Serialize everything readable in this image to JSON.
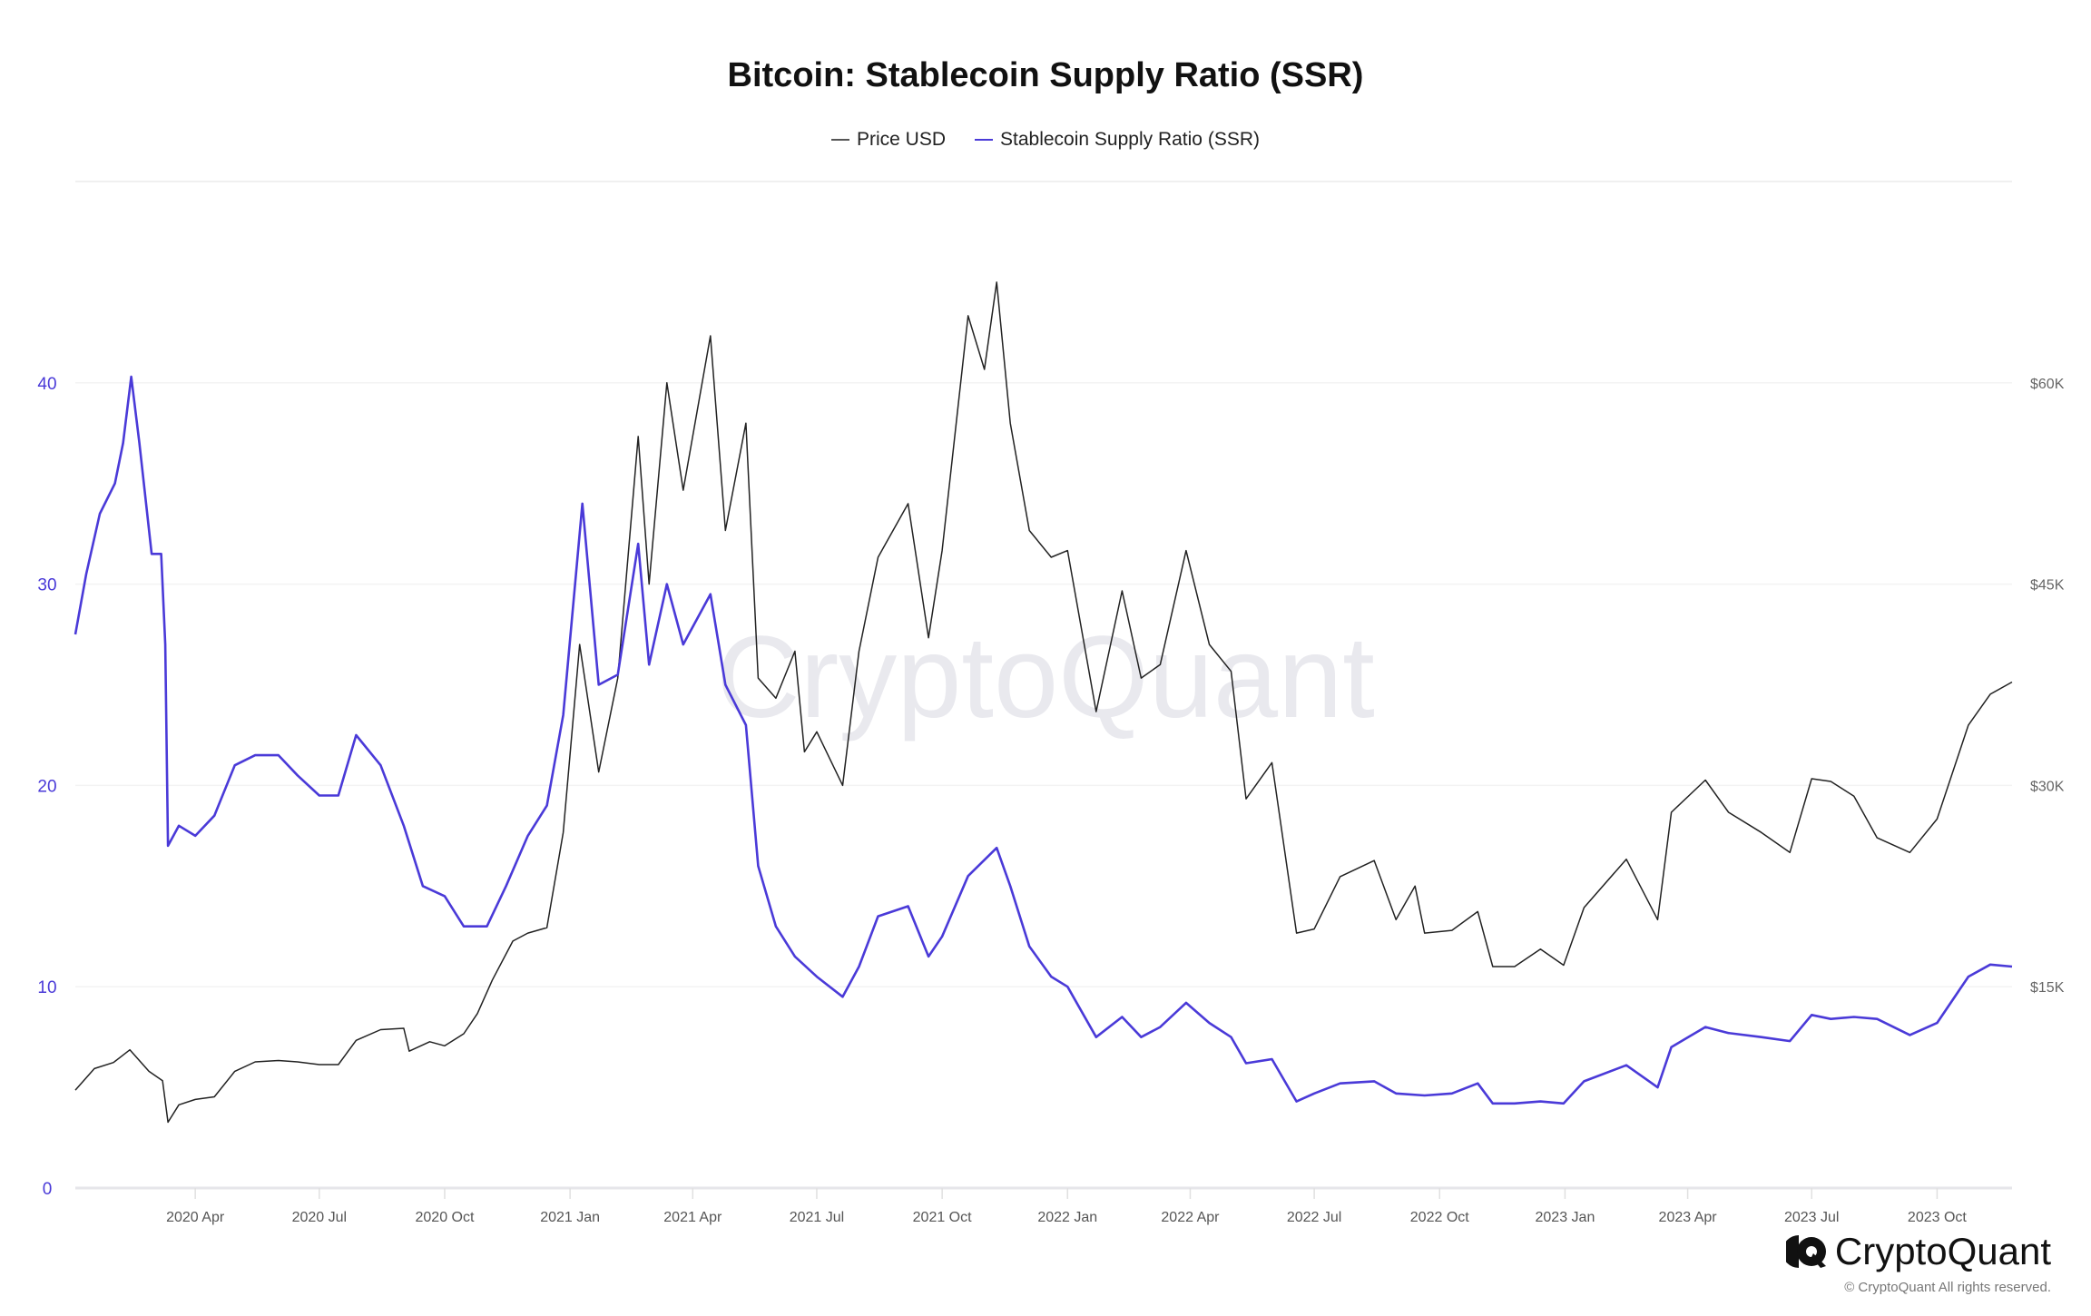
{
  "chart_data": {
    "type": "line",
    "title": "Bitcoin: Stablecoin Supply Ratio (SSR)",
    "legend_position": "top",
    "grid": true,
    "xlim": [
      "2020-01-04",
      "2023-11-25"
    ],
    "x_ticks": [
      "2020 Apr",
      "2020 Jul",
      "2020 Oct",
      "2021 Jan",
      "2021 Apr",
      "2021 Jul",
      "2021 Oct",
      "2022 Jan",
      "2022 Apr",
      "2022 Jul",
      "2022 Oct",
      "2023 Jan",
      "2023 Apr",
      "2023 Jul",
      "2023 Oct"
    ],
    "x_tick_dates": [
      "2020-04-01",
      "2020-07-01",
      "2020-10-01",
      "2021-01-01",
      "2021-04-01",
      "2021-07-01",
      "2021-10-01",
      "2022-01-01",
      "2022-04-01",
      "2022-07-01",
      "2022-10-01",
      "2023-01-01",
      "2023-04-01",
      "2023-07-01",
      "2023-10-01"
    ],
    "y_left": {
      "ylim": [
        0,
        50
      ],
      "ticks": [
        0,
        10,
        20,
        30,
        40
      ],
      "tick_labels": [
        "0",
        "10",
        "20",
        "30",
        "40"
      ],
      "color": "#4a3ad8"
    },
    "y_right": {
      "ylim": [
        0,
        75000
      ],
      "ticks": [
        15000,
        30000,
        45000,
        60000
      ],
      "tick_labels": [
        "$15K",
        "$30K",
        "$45K",
        "$60K"
      ],
      "color": "#666666"
    },
    "series": [
      {
        "name": "Price USD",
        "axis": "right",
        "color": "#222222",
        "points": [
          [
            "2020-01-04",
            7300
          ],
          [
            "2020-01-18",
            8900
          ],
          [
            "2020-02-01",
            9350
          ],
          [
            "2020-02-13",
            10300
          ],
          [
            "2020-02-27",
            8700
          ],
          [
            "2020-03-08",
            8000
          ],
          [
            "2020-03-12",
            4900
          ],
          [
            "2020-03-20",
            6200
          ],
          [
            "2020-04-01",
            6600
          ],
          [
            "2020-04-15",
            6800
          ],
          [
            "2020-04-30",
            8700
          ],
          [
            "2020-05-15",
            9400
          ],
          [
            "2020-06-01",
            9500
          ],
          [
            "2020-06-15",
            9400
          ],
          [
            "2020-07-01",
            9200
          ],
          [
            "2020-07-15",
            9200
          ],
          [
            "2020-07-28",
            11000
          ],
          [
            "2020-08-15",
            11800
          ],
          [
            "2020-09-01",
            11900
          ],
          [
            "2020-09-05",
            10200
          ],
          [
            "2020-09-20",
            10900
          ],
          [
            "2020-10-01",
            10600
          ],
          [
            "2020-10-15",
            11500
          ],
          [
            "2020-10-25",
            13000
          ],
          [
            "2020-11-05",
            15500
          ],
          [
            "2020-11-20",
            18400
          ],
          [
            "2020-12-01",
            19000
          ],
          [
            "2020-12-15",
            19400
          ],
          [
            "2020-12-27",
            26500
          ],
          [
            "2021-01-08",
            40500
          ],
          [
            "2021-01-22",
            31000
          ],
          [
            "2021-02-05",
            38000
          ],
          [
            "2021-02-20",
            56000
          ],
          [
            "2021-02-28",
            45000
          ],
          [
            "2021-03-13",
            60000
          ],
          [
            "2021-03-25",
            52000
          ],
          [
            "2021-04-14",
            63500
          ],
          [
            "2021-04-25",
            49000
          ],
          [
            "2021-05-10",
            57000
          ],
          [
            "2021-05-19",
            38000
          ],
          [
            "2021-06-01",
            36500
          ],
          [
            "2021-06-15",
            40000
          ],
          [
            "2021-06-22",
            32500
          ],
          [
            "2021-07-01",
            34000
          ],
          [
            "2021-07-20",
            30000
          ],
          [
            "2021-08-01",
            40000
          ],
          [
            "2021-08-15",
            47000
          ],
          [
            "2021-09-06",
            51000
          ],
          [
            "2021-09-21",
            41000
          ],
          [
            "2021-10-01",
            47500
          ],
          [
            "2021-10-20",
            65000
          ],
          [
            "2021-11-01",
            61000
          ],
          [
            "2021-11-10",
            67500
          ],
          [
            "2021-11-20",
            57000
          ],
          [
            "2021-12-04",
            49000
          ],
          [
            "2021-12-20",
            47000
          ],
          [
            "2022-01-01",
            47500
          ],
          [
            "2022-01-22",
            35500
          ],
          [
            "2022-02-10",
            44500
          ],
          [
            "2022-02-24",
            38000
          ],
          [
            "2022-03-10",
            39000
          ],
          [
            "2022-03-29",
            47500
          ],
          [
            "2022-04-15",
            40500
          ],
          [
            "2022-05-01",
            38500
          ],
          [
            "2022-05-12",
            29000
          ],
          [
            "2022-05-31",
            31700
          ],
          [
            "2022-06-18",
            19000
          ],
          [
            "2022-07-01",
            19300
          ],
          [
            "2022-07-20",
            23200
          ],
          [
            "2022-08-14",
            24400
          ],
          [
            "2022-08-30",
            20000
          ],
          [
            "2022-09-13",
            22500
          ],
          [
            "2022-09-20",
            19000
          ],
          [
            "2022-10-10",
            19200
          ],
          [
            "2022-10-29",
            20600
          ],
          [
            "2022-11-09",
            16500
          ],
          [
            "2022-11-25",
            16500
          ],
          [
            "2022-12-14",
            17800
          ],
          [
            "2022-12-31",
            16600
          ],
          [
            "2023-01-15",
            20900
          ],
          [
            "2023-02-15",
            24500
          ],
          [
            "2023-03-10",
            20000
          ],
          [
            "2023-03-20",
            28000
          ],
          [
            "2023-04-14",
            30400
          ],
          [
            "2023-05-01",
            28000
          ],
          [
            "2023-05-25",
            26500
          ],
          [
            "2023-06-15",
            25000
          ],
          [
            "2023-07-01",
            30500
          ],
          [
            "2023-07-15",
            30300
          ],
          [
            "2023-08-01",
            29200
          ],
          [
            "2023-08-18",
            26100
          ],
          [
            "2023-09-11",
            25000
          ],
          [
            "2023-10-01",
            27500
          ],
          [
            "2023-10-24",
            34500
          ],
          [
            "2023-11-09",
            36800
          ],
          [
            "2023-11-25",
            37700
          ]
        ]
      },
      {
        "name": "Stablecoin Supply Ratio (SSR)",
        "axis": "left",
        "color": "#4a3ad8",
        "points": [
          [
            "2020-01-04",
            27.5
          ],
          [
            "2020-01-12",
            30.5
          ],
          [
            "2020-01-22",
            33.5
          ],
          [
            "2020-02-02",
            35
          ],
          [
            "2020-02-08",
            37
          ],
          [
            "2020-02-14",
            40.3
          ],
          [
            "2020-02-20",
            37
          ],
          [
            "2020-02-29",
            31.5
          ],
          [
            "2020-03-07",
            31.5
          ],
          [
            "2020-03-10",
            27
          ],
          [
            "2020-03-12",
            17
          ],
          [
            "2020-03-20",
            18
          ],
          [
            "2020-04-01",
            17.5
          ],
          [
            "2020-04-15",
            18.5
          ],
          [
            "2020-04-30",
            21
          ],
          [
            "2020-05-15",
            21.5
          ],
          [
            "2020-06-01",
            21.5
          ],
          [
            "2020-06-15",
            20.5
          ],
          [
            "2020-07-01",
            19.5
          ],
          [
            "2020-07-15",
            19.5
          ],
          [
            "2020-07-28",
            22.5
          ],
          [
            "2020-08-15",
            21
          ],
          [
            "2020-09-01",
            18
          ],
          [
            "2020-09-15",
            15
          ],
          [
            "2020-10-01",
            14.5
          ],
          [
            "2020-10-15",
            13
          ],
          [
            "2020-11-01",
            13
          ],
          [
            "2020-11-15",
            15
          ],
          [
            "2020-12-01",
            17.5
          ],
          [
            "2020-12-15",
            19
          ],
          [
            "2020-12-27",
            23.5
          ],
          [
            "2021-01-10",
            34
          ],
          [
            "2021-01-22",
            25
          ],
          [
            "2021-02-05",
            25.5
          ],
          [
            "2021-02-20",
            32
          ],
          [
            "2021-02-28",
            26
          ],
          [
            "2021-03-13",
            30
          ],
          [
            "2021-03-25",
            27
          ],
          [
            "2021-04-14",
            29.5
          ],
          [
            "2021-04-25",
            25
          ],
          [
            "2021-05-10",
            23
          ],
          [
            "2021-05-19",
            16
          ],
          [
            "2021-06-01",
            13
          ],
          [
            "2021-06-15",
            11.5
          ],
          [
            "2021-07-01",
            10.5
          ],
          [
            "2021-07-20",
            9.5
          ],
          [
            "2021-08-01",
            11
          ],
          [
            "2021-08-15",
            13.5
          ],
          [
            "2021-09-06",
            14
          ],
          [
            "2021-09-21",
            11.5
          ],
          [
            "2021-10-01",
            12.5
          ],
          [
            "2021-10-20",
            15.5
          ],
          [
            "2021-11-10",
            16.9
          ],
          [
            "2021-11-20",
            15
          ],
          [
            "2021-12-04",
            12
          ],
          [
            "2021-12-20",
            10.5
          ],
          [
            "2022-01-01",
            10
          ],
          [
            "2022-01-22",
            7.5
          ],
          [
            "2022-02-10",
            8.5
          ],
          [
            "2022-02-24",
            7.5
          ],
          [
            "2022-03-10",
            8
          ],
          [
            "2022-03-29",
            9.2
          ],
          [
            "2022-04-15",
            8.2
          ],
          [
            "2022-05-01",
            7.5
          ],
          [
            "2022-05-12",
            6.2
          ],
          [
            "2022-05-31",
            6.4
          ],
          [
            "2022-06-18",
            4.3
          ],
          [
            "2022-07-01",
            4.7
          ],
          [
            "2022-07-20",
            5.2
          ],
          [
            "2022-08-14",
            5.3
          ],
          [
            "2022-08-30",
            4.7
          ],
          [
            "2022-09-20",
            4.6
          ],
          [
            "2022-10-10",
            4.7
          ],
          [
            "2022-10-29",
            5.2
          ],
          [
            "2022-11-09",
            4.2
          ],
          [
            "2022-11-25",
            4.2
          ],
          [
            "2022-12-14",
            4.3
          ],
          [
            "2022-12-31",
            4.2
          ],
          [
            "2023-01-15",
            5.3
          ],
          [
            "2023-02-15",
            6.1
          ],
          [
            "2023-03-10",
            5
          ],
          [
            "2023-03-20",
            7
          ],
          [
            "2023-04-14",
            8
          ],
          [
            "2023-05-01",
            7.7
          ],
          [
            "2023-05-25",
            7.5
          ],
          [
            "2023-06-15",
            7.3
          ],
          [
            "2023-07-01",
            8.6
          ],
          [
            "2023-07-15",
            8.4
          ],
          [
            "2023-08-01",
            8.5
          ],
          [
            "2023-08-18",
            8.4
          ],
          [
            "2023-09-11",
            7.6
          ],
          [
            "2023-10-01",
            8.2
          ],
          [
            "2023-10-24",
            10.5
          ],
          [
            "2023-11-09",
            11.1
          ],
          [
            "2023-11-25",
            11
          ]
        ]
      }
    ]
  },
  "legend": {
    "items": [
      "Price USD",
      "Stablecoin Supply Ratio (SSR)"
    ]
  },
  "watermark": "CryptoQuant",
  "brand": {
    "name": "CryptoQuant",
    "copyright": "© CryptoQuant All rights reserved."
  }
}
